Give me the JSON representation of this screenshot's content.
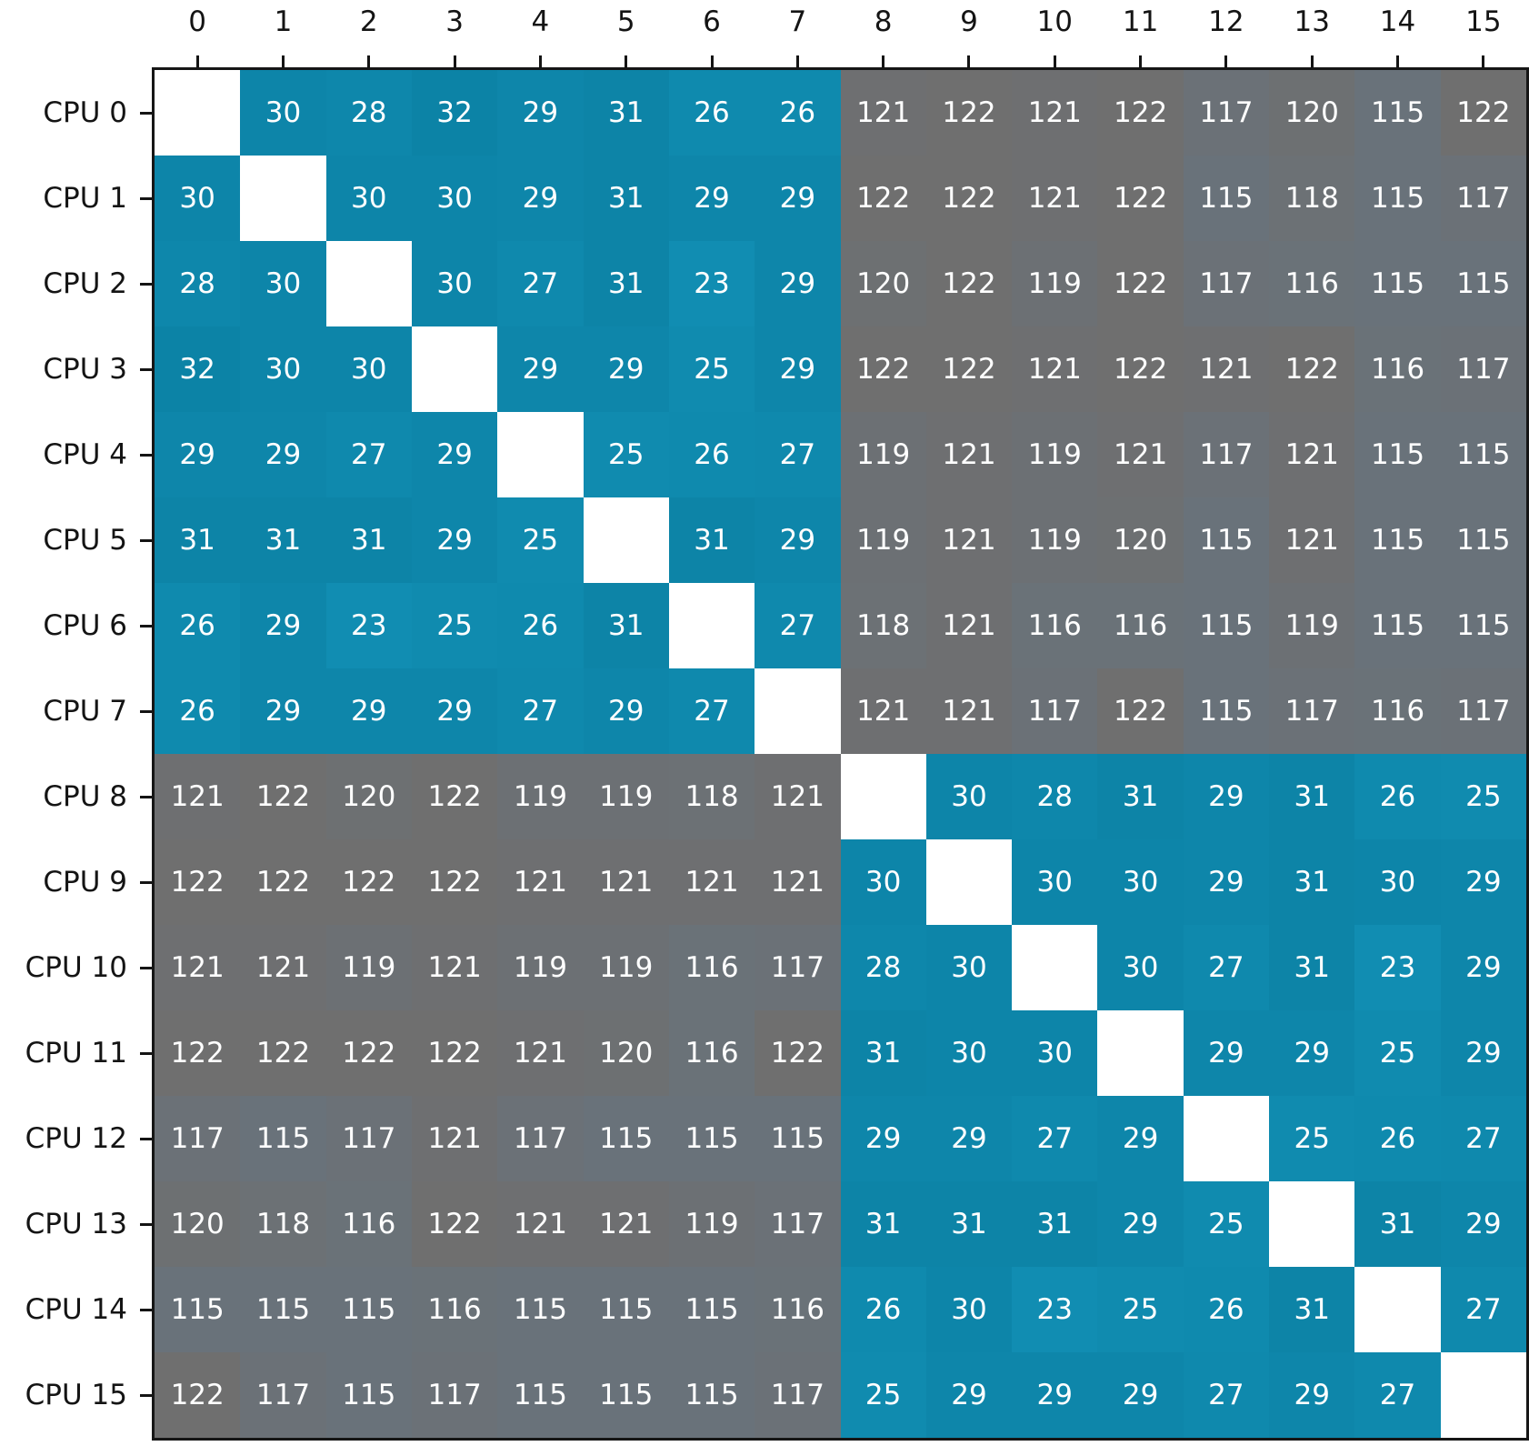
{
  "chart_data": {
    "type": "heatmap",
    "description": "Core-to-core CPU latency matrix, 16x16, diagonal blank",
    "row_labels": [
      "CPU 0",
      "CPU 1",
      "CPU 2",
      "CPU 3",
      "CPU 4",
      "CPU 5",
      "CPU 6",
      "CPU 7",
      "CPU 8",
      "CPU 9",
      "CPU 10",
      "CPU 11",
      "CPU 12",
      "CPU 13",
      "CPU 14",
      "CPU 15"
    ],
    "col_labels": [
      "0",
      "1",
      "2",
      "3",
      "4",
      "5",
      "6",
      "7",
      "8",
      "9",
      "10",
      "11",
      "12",
      "13",
      "14",
      "15"
    ],
    "matrix": [
      [
        null,
        30,
        28,
        32,
        29,
        31,
        26,
        26,
        121,
        122,
        121,
        122,
        117,
        120,
        115,
        122
      ],
      [
        30,
        null,
        30,
        30,
        29,
        31,
        29,
        29,
        122,
        122,
        121,
        122,
        115,
        118,
        115,
        117
      ],
      [
        28,
        30,
        null,
        30,
        27,
        31,
        23,
        29,
        120,
        122,
        119,
        122,
        117,
        116,
        115,
        115
      ],
      [
        32,
        30,
        30,
        null,
        29,
        29,
        25,
        29,
        122,
        122,
        121,
        122,
        121,
        122,
        116,
        117
      ],
      [
        29,
        29,
        27,
        29,
        null,
        25,
        26,
        27,
        119,
        121,
        119,
        121,
        117,
        121,
        115,
        115
      ],
      [
        31,
        31,
        31,
        29,
        25,
        null,
        31,
        29,
        119,
        121,
        119,
        120,
        115,
        121,
        115,
        115
      ],
      [
        26,
        29,
        23,
        25,
        26,
        31,
        null,
        27,
        118,
        121,
        116,
        116,
        115,
        119,
        115,
        115
      ],
      [
        26,
        29,
        29,
        29,
        27,
        29,
        27,
        null,
        121,
        121,
        117,
        122,
        115,
        117,
        116,
        117
      ],
      [
        121,
        122,
        120,
        122,
        119,
        119,
        118,
        121,
        null,
        30,
        28,
        31,
        29,
        31,
        26,
        25
      ],
      [
        122,
        122,
        122,
        122,
        121,
        121,
        121,
        121,
        30,
        null,
        30,
        30,
        29,
        31,
        30,
        29
      ],
      [
        121,
        121,
        119,
        121,
        119,
        119,
        116,
        117,
        28,
        30,
        null,
        30,
        27,
        31,
        23,
        29
      ],
      [
        122,
        122,
        122,
        122,
        121,
        120,
        116,
        122,
        31,
        30,
        30,
        null,
        29,
        29,
        25,
        29
      ],
      [
        117,
        115,
        117,
        121,
        117,
        115,
        115,
        115,
        29,
        29,
        27,
        29,
        null,
        25,
        26,
        27
      ],
      [
        120,
        118,
        116,
        122,
        121,
        121,
        119,
        117,
        31,
        31,
        31,
        29,
        25,
        null,
        31,
        29
      ],
      [
        115,
        115,
        115,
        116,
        115,
        115,
        115,
        116,
        26,
        30,
        23,
        25,
        26,
        31,
        null,
        27
      ],
      [
        122,
        117,
        115,
        117,
        115,
        115,
        115,
        117,
        25,
        29,
        29,
        29,
        27,
        29,
        27,
        null
      ]
    ],
    "value_ranges": {
      "low": [
        23,
        32
      ],
      "high": [
        115,
        122
      ]
    },
    "colors": {
      "low_start": "#118db2",
      "low_range_light": "#118db2",
      "low_range_dark": "#0c83a6",
      "high_range_start": "#69727a",
      "high_range_end": "#6f6f6f",
      "diagonal": "#ffffff",
      "cell_text": "#ffffff",
      "axis_text": "#141414",
      "spine": "#161616"
    },
    "layout": {
      "grid": false,
      "legend": false,
      "x_axis_position": "top",
      "y_axis_position": "left"
    }
  }
}
